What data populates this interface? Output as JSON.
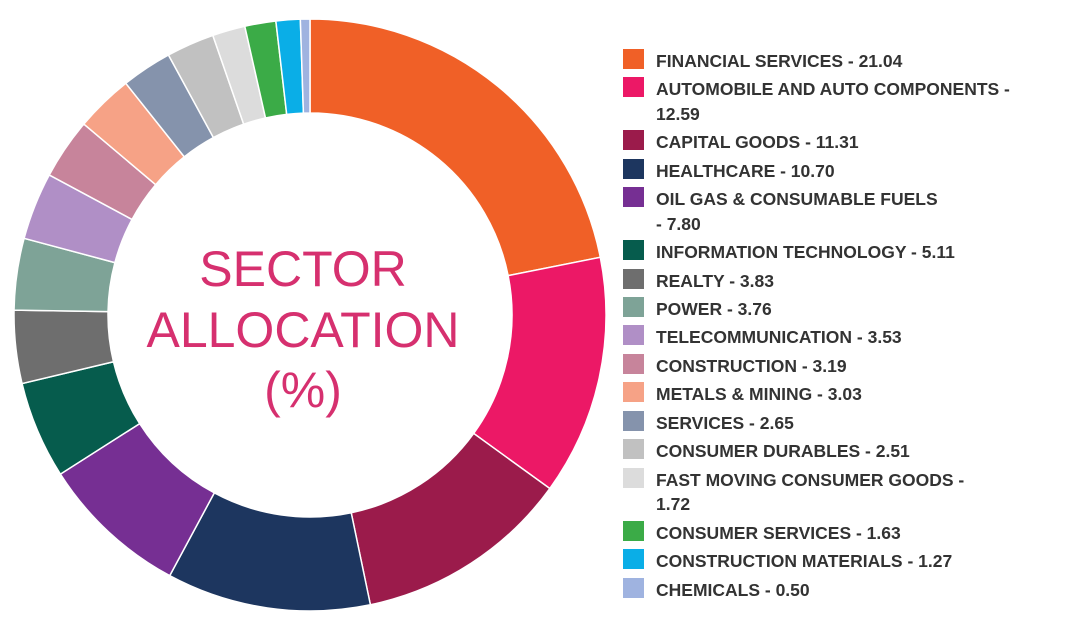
{
  "chart_data": {
    "type": "pie",
    "title": "SECTOR ALLOCATION (%)",
    "title_lines": [
      "SECTOR",
      "ALLOCATION",
      "(%)"
    ],
    "legend_position": "right",
    "slices": [
      {
        "label": "FINANCIAL SERVICES - 21.04",
        "name": "FINANCIAL SERVICES",
        "value": 21.04,
        "color": "#f06027",
        "wrap_at": null
      },
      {
        "label": "AUTOMOBILE AND AUTO COMPONENTS - 12.59",
        "name": "AUTOMOBILE AND AUTO COMPONENTS",
        "value": 12.59,
        "color": "#ec1866",
        "wrap_at": 1
      },
      {
        "label": "CAPITAL GOODS - 11.31",
        "name": "CAPITAL GOODS",
        "value": 11.31,
        "color": "#9b1b4b",
        "wrap_at": null
      },
      {
        "label": "HEALTHCARE - 10.70",
        "name": "HEALTHCARE",
        "value": 10.7,
        "color": "#1d365f",
        "wrap_at": null
      },
      {
        "label": "OIL GAS & CONSUMABLE FUELS - 7.80",
        "name": "OIL GAS & CONSUMABLE FUELS",
        "value": 7.8,
        "color": "#762f93",
        "wrap_at": 0
      },
      {
        "label": "INFORMATION TECHNOLOGY - 5.11",
        "name": "INFORMATION TECHNOLOGY",
        "value": 5.11,
        "color": "#065c4d",
        "wrap_at": null
      },
      {
        "label": "REALTY - 3.83",
        "name": "REALTY",
        "value": 3.83,
        "color": "#6e6e6e",
        "wrap_at": null
      },
      {
        "label": "POWER - 3.76",
        "name": "POWER",
        "value": 3.76,
        "color": "#7ea397",
        "wrap_at": null
      },
      {
        "label": "TELECOMMUNICATION - 3.53",
        "name": "TELECOMMUNICATION",
        "value": 3.53,
        "color": "#b08fc6",
        "wrap_at": null
      },
      {
        "label": "CONSTRUCTION - 3.19",
        "name": "CONSTRUCTION",
        "value": 3.19,
        "color": "#c7849b",
        "wrap_at": null
      },
      {
        "label": "METALS & MINING - 3.03",
        "name": "METALS & MINING",
        "value": 3.03,
        "color": "#f6a286",
        "wrap_at": null
      },
      {
        "label": "SERVICES - 2.65",
        "name": "SERVICES",
        "value": 2.65,
        "color": "#8593ac",
        "wrap_at": null
      },
      {
        "label": "CONSUMER DURABLES - 2.51",
        "name": "CONSUMER DURABLES",
        "value": 2.51,
        "color": "#c1c1c1",
        "wrap_at": null
      },
      {
        "label": "FAST MOVING CONSUMER GOODS - 1.72",
        "name": "FAST MOVING CONSUMER GOODS",
        "value": 1.72,
        "color": "#dcdcdc",
        "wrap_at": 1
      },
      {
        "label": "CONSUMER SERVICES - 1.63",
        "name": "CONSUMER SERVICES",
        "value": 1.63,
        "color": "#3bab47",
        "wrap_at": null
      },
      {
        "label": "CONSTRUCTION MATERIALS - 1.27",
        "name": "CONSTRUCTION MATERIALS",
        "value": 1.27,
        "color": "#0aaee7",
        "wrap_at": null
      },
      {
        "label": "CHEMICALS - 0.50",
        "name": "CHEMICALS",
        "value": 0.5,
        "color": "#9fb3e0",
        "wrap_at": null
      }
    ]
  }
}
